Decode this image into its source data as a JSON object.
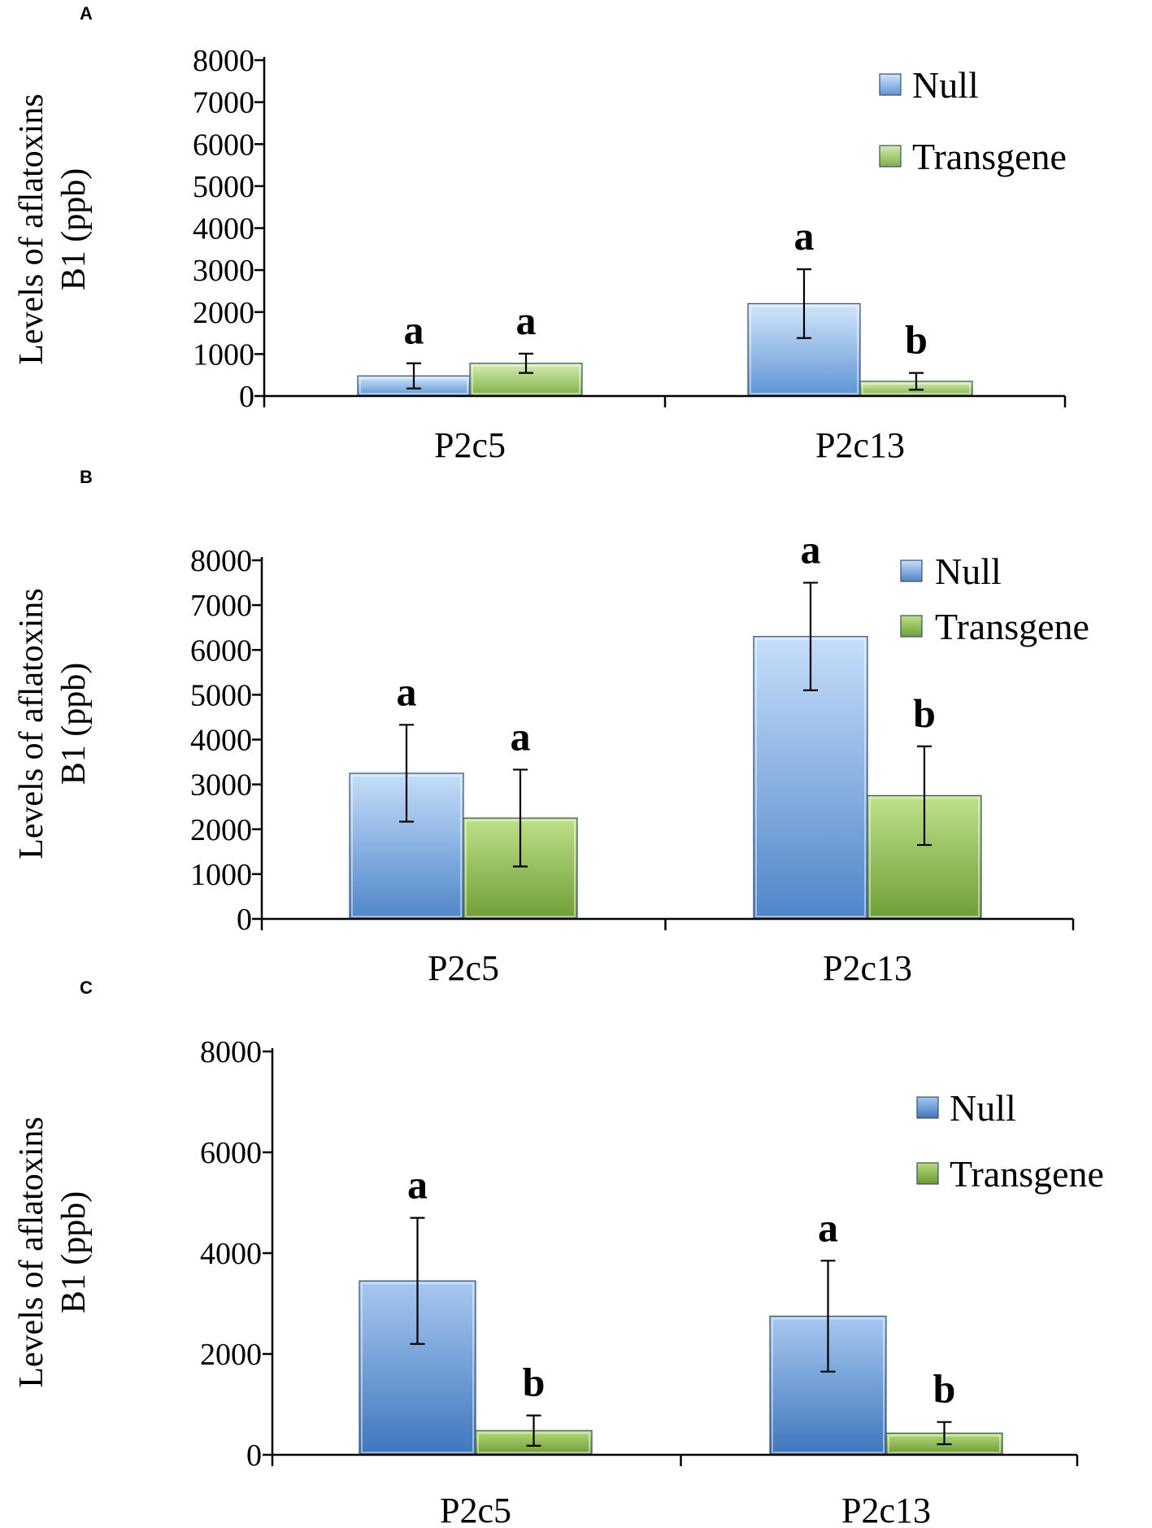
{
  "chart_data": [
    {
      "panel": "A",
      "type": "bar",
      "ylabel_line1": "Levels of aflatoxins",
      "ylabel_line2": "B1 (ppb)",
      "ylim": [
        0,
        8000
      ],
      "yticks": [
        0,
        1000,
        2000,
        3000,
        4000,
        5000,
        6000,
        7000,
        8000
      ],
      "categories": [
        "P2c5",
        "P2c13"
      ],
      "series": [
        {
          "name": "Null",
          "values": [
            480,
            2200
          ],
          "errors": [
            300,
            820
          ],
          "labels": [
            "a",
            "a"
          ],
          "color": "#7fb1e6"
        },
        {
          "name": "Transgene",
          "values": [
            780,
            350
          ],
          "errors": [
            230,
            200
          ],
          "labels": [
            "a",
            "b"
          ],
          "color": "#9cc76a"
        }
      ]
    },
    {
      "panel": "B",
      "type": "bar",
      "ylabel_line1": "Levels of aflatoxins",
      "ylabel_line2": "B1 (ppb)",
      "ylim": [
        0,
        8000
      ],
      "yticks": [
        0,
        1000,
        2000,
        3000,
        4000,
        5000,
        6000,
        7000,
        8000
      ],
      "categories": [
        "P2c5",
        "P2c13"
      ],
      "series": [
        {
          "name": "Null",
          "values": [
            3250,
            6300
          ],
          "errors": [
            1080,
            1200
          ],
          "labels": [
            "a",
            "a"
          ],
          "color": "#6a9fd8"
        },
        {
          "name": "Transgene",
          "values": [
            2250,
            2750
          ],
          "errors": [
            1080,
            1100
          ],
          "labels": [
            "a",
            "b"
          ],
          "color": "#8bbb52"
        }
      ]
    },
    {
      "panel": "C",
      "type": "bar",
      "ylabel_line1": "Levels of aflatoxins",
      "ylabel_line2": "B1 (ppb)",
      "ylim": [
        0,
        8000
      ],
      "yticks": [
        0,
        2000,
        4000,
        6000,
        8000
      ],
      "categories": [
        "P2c5",
        "P2c13"
      ],
      "series": [
        {
          "name": "Null",
          "values": [
            3450,
            2750
          ],
          "errors": [
            1250,
            1100
          ],
          "labels": [
            "a",
            "a"
          ],
          "color": "#6196d4"
        },
        {
          "name": "Transgene",
          "values": [
            480,
            430
          ],
          "errors": [
            300,
            220
          ],
          "labels": [
            "b",
            "b"
          ],
          "color": "#86b94c"
        }
      ]
    }
  ]
}
